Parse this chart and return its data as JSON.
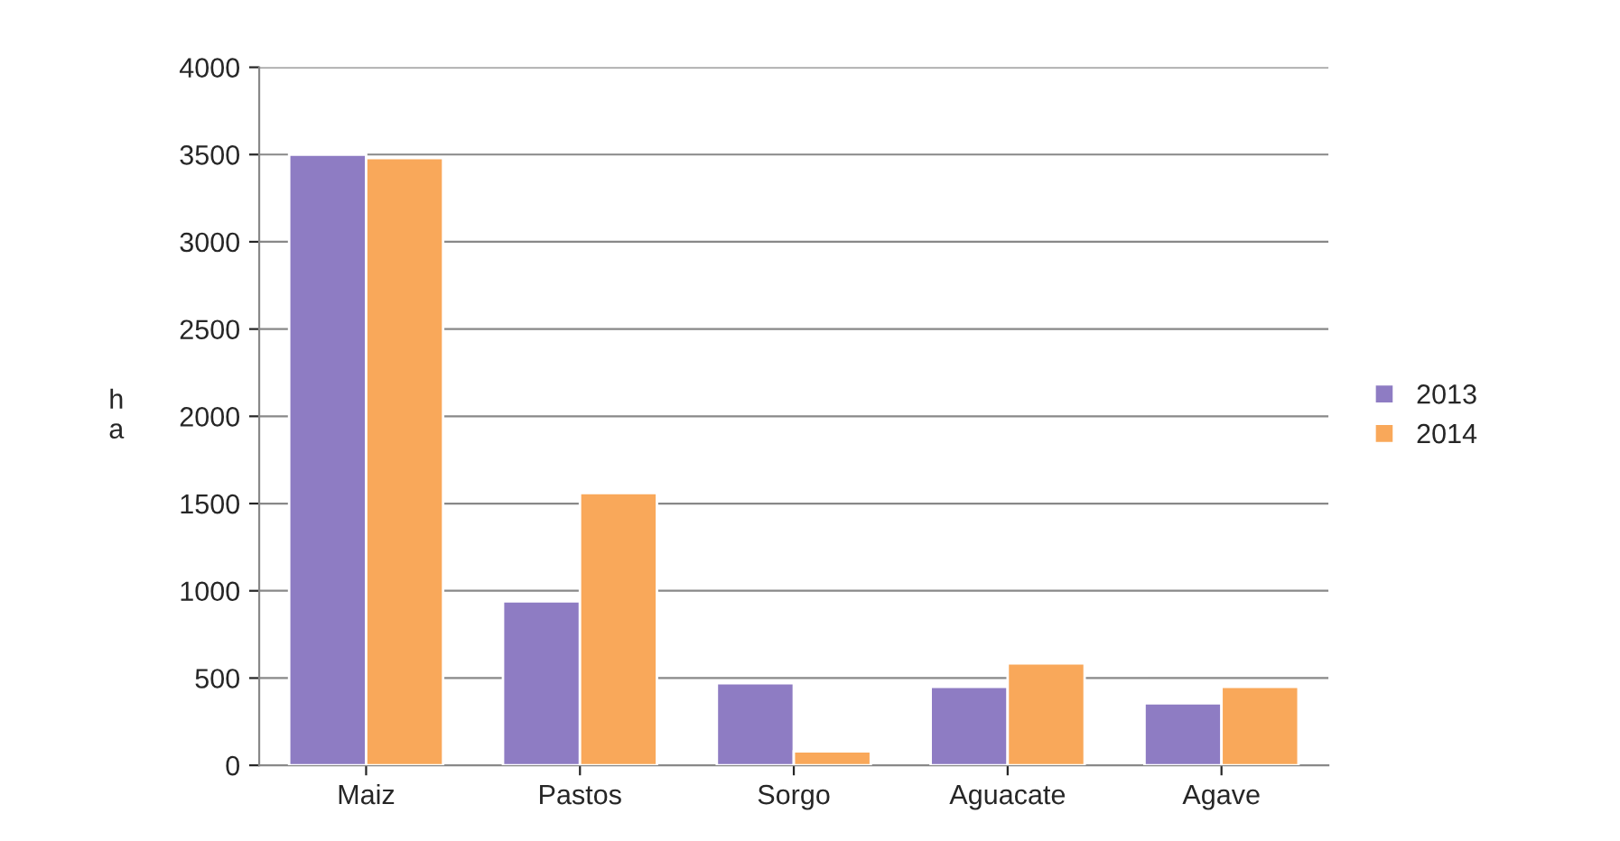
{
  "chart_data": {
    "type": "bar",
    "ylabel": "h\na",
    "categories": [
      "Maiz",
      "Pastos",
      "Sorgo",
      "Aguacate",
      "Agave"
    ],
    "series": [
      {
        "name": "2013",
        "color": "#8e7cc3",
        "values": [
          3500,
          940,
          470,
          450,
          355
        ]
      },
      {
        "name": "2014",
        "color": "#f9a85a",
        "values": [
          3480,
          1560,
          80,
          585,
          450
        ]
      }
    ],
    "ylim": [
      0,
      4000
    ],
    "yticks": [
      0,
      500,
      1000,
      1500,
      2000,
      2500,
      3000,
      3500,
      4000
    ],
    "grid": "y",
    "legend": "right"
  }
}
